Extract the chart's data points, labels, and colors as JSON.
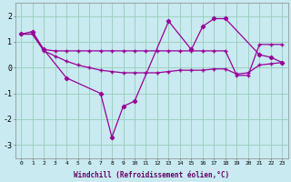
{
  "xlabel": "Windchill (Refroidissement éolien,°C)",
  "x": [
    0,
    1,
    2,
    3,
    4,
    5,
    6,
    7,
    8,
    9,
    10,
    11,
    12,
    13,
    14,
    15,
    16,
    17,
    18,
    19,
    20,
    21,
    22,
    23
  ],
  "line1_x": [
    0,
    1,
    2,
    4,
    7,
    8,
    9,
    10,
    13,
    15,
    16,
    17,
    18,
    21,
    22,
    23
  ],
  "line1_y": [
    1.3,
    1.4,
    0.7,
    -0.4,
    -1.0,
    -2.7,
    -1.5,
    -1.3,
    1.8,
    0.7,
    1.6,
    1.9,
    1.9,
    0.5,
    0.4,
    0.2
  ],
  "line2_x": [
    0,
    1,
    2,
    3,
    4,
    5,
    6,
    7,
    8,
    9,
    10,
    11,
    12,
    13,
    14,
    15,
    16,
    17,
    18,
    19,
    20,
    21,
    22,
    23
  ],
  "line2_y": [
    1.3,
    1.3,
    0.7,
    0.65,
    0.65,
    0.65,
    0.65,
    0.65,
    0.65,
    0.65,
    0.65,
    0.65,
    0.65,
    0.65,
    0.65,
    0.65,
    0.65,
    0.65,
    0.65,
    -0.3,
    -0.3,
    0.9,
    0.9,
    0.9
  ],
  "line3_x": [
    0,
    1,
    2,
    3,
    4,
    5,
    6,
    7,
    8,
    9,
    10,
    11,
    12,
    13,
    14,
    15,
    16,
    17,
    18,
    19,
    20,
    21,
    22,
    23
  ],
  "line3_y": [
    1.3,
    1.3,
    0.65,
    0.45,
    0.25,
    0.1,
    0.0,
    -0.1,
    -0.15,
    -0.2,
    -0.2,
    -0.2,
    -0.2,
    -0.15,
    -0.1,
    -0.1,
    -0.1,
    -0.05,
    -0.05,
    -0.25,
    -0.2,
    0.1,
    0.15,
    0.2
  ],
  "bg_color": "#c8eaf0",
  "line_color": "#990099",
  "grid_color": "#99ccbb",
  "ylim": [
    -3.5,
    2.5
  ],
  "yticks": [
    -3,
    -2,
    -1,
    0,
    1,
    2
  ],
  "xlabel_color": "#660066"
}
